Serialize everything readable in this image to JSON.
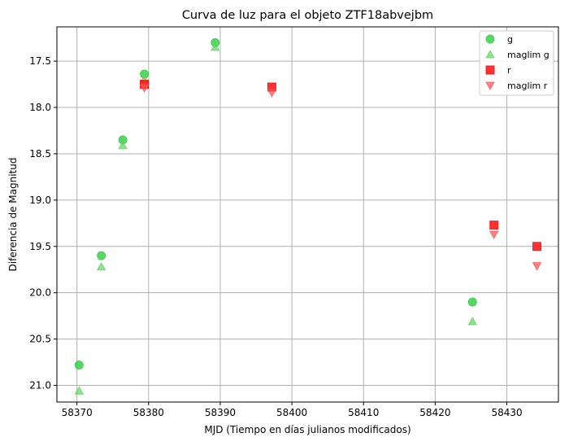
{
  "chart_data": {
    "type": "scatter",
    "title": "Curva de luz para el objeto ZTF18abvejbm",
    "xlabel": "MJD (Tiempo en días julianos modificados)",
    "ylabel": "Diferencia de Magnitud",
    "xlim": [
      58367.2,
      58437.2
    ],
    "ylim": [
      21.18,
      17.13
    ],
    "y_inverted": true,
    "grid": true,
    "legend_position": "top-right",
    "xticks": [
      58370,
      58380,
      58390,
      58400,
      58410,
      58420,
      58430
    ],
    "xtick_labels": [
      "58370",
      "58380",
      "58390",
      "58400",
      "58410",
      "58420",
      "58430"
    ],
    "yticks": [
      17.5,
      18.0,
      18.5,
      19.0,
      19.5,
      20.0,
      20.5,
      21.0
    ],
    "ytick_labels": [
      "17.5",
      "18.0",
      "18.5",
      "19.0",
      "19.5",
      "20.0",
      "20.5",
      "21.0"
    ],
    "series": [
      {
        "name": "g",
        "marker": "circle",
        "color": "#2ecc40",
        "opacity": 0.8,
        "x": [
          58370.3,
          58373.4,
          58376.4,
          58379.4,
          58389.3,
          58425.2
        ],
        "y": [
          20.78,
          19.6,
          18.35,
          17.64,
          17.3,
          20.1
        ]
      },
      {
        "name": "maglim g",
        "marker": "triangle-up",
        "color": "#5fd35f",
        "opacity": 0.7,
        "x": [
          58370.3,
          58373.4,
          58376.4,
          58379.4,
          58389.3,
          58425.2
        ],
        "y": [
          21.06,
          19.72,
          18.41,
          17.7,
          17.35,
          20.31
        ]
      },
      {
        "name": "r",
        "marker": "square",
        "color": "#ff0000",
        "opacity": 0.8,
        "x": [
          58379.4,
          58397.2,
          58428.2,
          58434.2
        ],
        "y": [
          17.75,
          17.78,
          19.27,
          19.5
        ]
      },
      {
        "name": "maglim r",
        "marker": "triangle-down",
        "color": "#ff4d4d",
        "opacity": 0.7,
        "x": [
          58379.4,
          58397.2,
          58428.2,
          58434.2
        ],
        "y": [
          17.79,
          17.84,
          19.37,
          19.71
        ]
      }
    ]
  }
}
